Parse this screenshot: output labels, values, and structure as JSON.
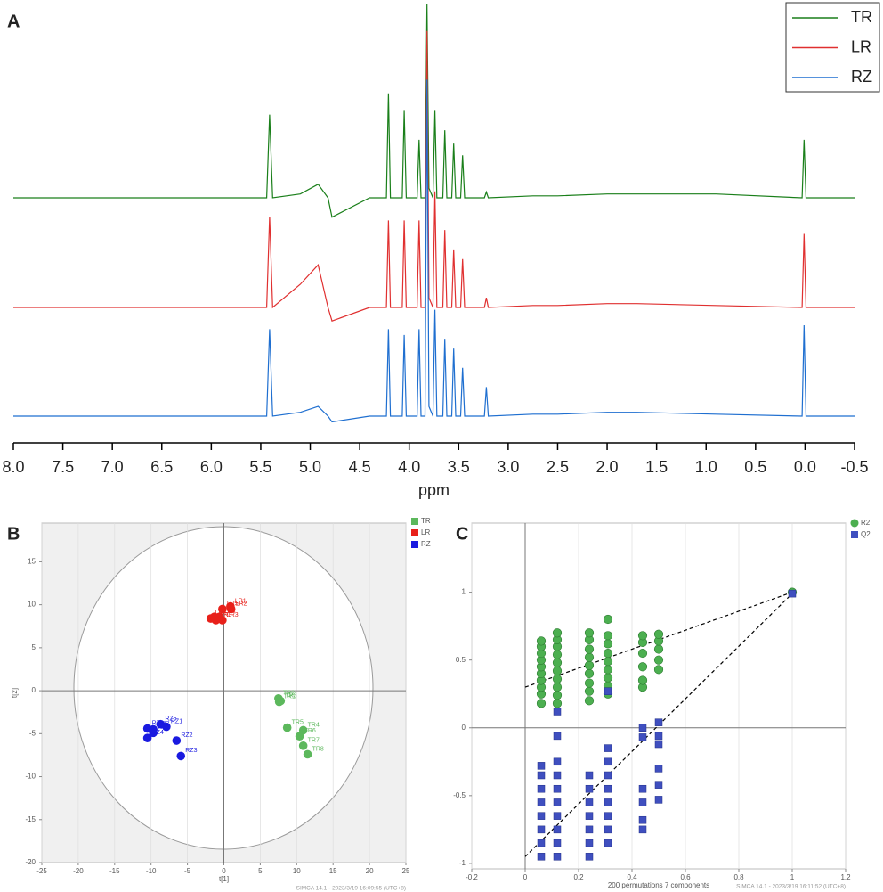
{
  "chart_data": [
    {
      "type": "line",
      "panel_label": "A",
      "xlabel": "ppm",
      "legend": "upper right",
      "xlim": [
        8.0,
        -0.5
      ],
      "xticks": [
        {
          "value": 8,
          "label": "8.0"
        },
        7.5,
        {
          "value": 7,
          "label": "7.0"
        },
        6.5,
        {
          "value": 6,
          "label": "6.0"
        },
        5.5,
        {
          "value": 5,
          "label": "5.0"
        },
        4.5,
        {
          "value": 4,
          "label": "4.0"
        },
        3.5,
        {
          "value": 3,
          "label": "3.0"
        },
        2.5,
        {
          "value": 2,
          "label": "2.0"
        },
        1.5,
        {
          "value": 1,
          "label": "1.0"
        },
        0.5,
        {
          "value": 0,
          "label": "0.0"
        },
        -0.5
      ],
      "x": [
        8.0,
        5.44,
        5.41,
        5.38,
        5.1,
        4.92,
        4.82,
        4.78,
        4.4,
        4.23,
        4.21,
        4.19,
        4.07,
        4.05,
        4.03,
        3.92,
        3.9,
        3.88,
        3.84,
        3.82,
        3.8,
        3.76,
        3.74,
        3.72,
        3.66,
        3.64,
        3.62,
        3.57,
        3.55,
        3.53,
        3.48,
        3.46,
        3.44,
        3.24,
        3.22,
        3.2,
        2.75,
        2.5,
        2.0,
        1.7,
        0.9,
        0.03,
        0.01,
        -0.01,
        -0.5
      ],
      "series": [
        {
          "name": "TR",
          "color": "#1a7f1a",
          "values": [
            0,
            0,
            43,
            0,
            2,
            7,
            0,
            -10,
            0,
            0,
            54,
            0,
            0,
            45,
            0,
            0,
            30,
            0,
            0,
            100,
            5,
            0,
            45,
            0,
            0,
            35,
            0,
            0,
            28,
            0,
            0,
            22,
            0,
            0,
            3,
            0,
            1,
            1,
            2,
            2,
            2,
            0,
            30,
            0,
            0
          ]
        },
        {
          "name": "LR",
          "color": "#e03030",
          "values": [
            0,
            0,
            47,
            0,
            12,
            22,
            0,
            -7,
            0,
            0,
            45,
            0,
            0,
            45,
            0,
            0,
            45,
            0,
            0,
            143,
            5,
            0,
            60,
            0,
            0,
            40,
            0,
            0,
            30,
            0,
            0,
            25,
            0,
            0,
            5,
            0,
            1,
            1,
            2,
            2,
            1,
            0,
            38,
            0,
            0
          ]
        },
        {
          "name": "RZ",
          "color": "#1f6fd0",
          "values": [
            0,
            0,
            45,
            0,
            2,
            5,
            0,
            -3,
            0,
            0,
            45,
            0,
            0,
            42,
            0,
            0,
            45,
            0,
            0,
            174,
            5,
            0,
            55,
            0,
            0,
            40,
            0,
            0,
            35,
            0,
            0,
            25,
            0,
            0,
            15,
            0,
            1,
            1,
            2,
            2,
            1,
            0,
            47,
            0,
            0
          ]
        }
      ]
    },
    {
      "type": "scatter",
      "panel_label": "B",
      "xlabel": "t[1]",
      "ylabel": "t[2]",
      "grid": true,
      "footnote": "SIMCA 14.1 - 2023/3/19 16:09:55 (UTC+8)",
      "xlim": [
        -25,
        25
      ],
      "xticks": [
        -25,
        -20,
        -15,
        -10,
        -5,
        0,
        5,
        10,
        15,
        20,
        25
      ],
      "ylim": [
        -20,
        19.5
      ],
      "yticks": [
        -20,
        -15,
        -10,
        -5,
        0,
        5,
        10,
        15
      ],
      "series": [
        {
          "name": "TR",
          "color": "#5cb85c",
          "marker": "circle",
          "x": [
            7.6,
            7.5,
            7.8,
            10.9,
            8.7,
            10.4,
            10.9,
            11.5
          ],
          "values": [
            -1.3,
            -0.9,
            -1.2,
            -4.6,
            -4.3,
            -5.3,
            -6.4,
            -7.4
          ],
          "point_labels": [
            "TR1",
            "TR2",
            "TR3",
            "TR4",
            "TR5",
            "TR6",
            "TR7",
            "TR8"
          ]
        },
        {
          "name": "LR",
          "color": "#e8201a",
          "marker": "circle",
          "x": [
            0.9,
            1.0,
            -0.2,
            -0.6,
            -0.2,
            -1.8,
            -1.3,
            -1.1
          ],
          "values": [
            9.8,
            9.5,
            8.2,
            8.6,
            9.5,
            8.4,
            8.6,
            8.2
          ],
          "point_labels": [
            "LR1",
            "LR2",
            "LR3",
            "LR4",
            "LR5",
            "LR6",
            "LR7",
            "LR8"
          ]
        },
        {
          "name": "RZ",
          "color": "#1a1ae0",
          "marker": "circle",
          "x": [
            -7.9,
            -6.5,
            -5.9,
            -10.5,
            -8.7,
            -9.7,
            -9.7,
            -10.5
          ],
          "values": [
            -4.2,
            -5.8,
            -7.6,
            -5.5,
            -3.9,
            -4.9,
            -4.5,
            -4.4
          ],
          "point_labels": [
            "RZ1",
            "RZ2",
            "RZ3",
            "RZ4",
            "RZ5",
            "RZ6",
            "RZ7",
            "RZ8"
          ]
        }
      ]
    },
    {
      "type": "scatter",
      "panel_label": "C",
      "xlabel": "200 permutations 7 components",
      "grid": true,
      "footnote": "SIMCA 14.1 - 2023/3/19 16:11:52 (UTC+8)",
      "xlim": [
        -0.2,
        1.2
      ],
      "xticks": [
        -0.2,
        0,
        0.2,
        0.4,
        0.6,
        0.8,
        1,
        1.2
      ],
      "ylim": [
        -1.04,
        1.51
      ],
      "yticks": [
        -1,
        -0.5,
        0,
        0.5,
        1
      ],
      "series": [
        {
          "name": "R2",
          "color": "#4caf50",
          "marker": "circle",
          "x": [
            0.06,
            0.06,
            0.06,
            0.06,
            0.06,
            0.06,
            0.06,
            0.06,
            0.06,
            0.06,
            0.12,
            0.12,
            0.12,
            0.12,
            0.12,
            0.12,
            0.12,
            0.12,
            0.12,
            0.12,
            0.24,
            0.24,
            0.24,
            0.24,
            0.24,
            0.24,
            0.24,
            0.24,
            0.24,
            0.31,
            0.31,
            0.31,
            0.31,
            0.31,
            0.31,
            0.31,
            0.31,
            0.31,
            0.44,
            0.44,
            0.44,
            0.44,
            0.44,
            0.44,
            0.5,
            0.5,
            0.5,
            0.5,
            0.5,
            1
          ],
          "values": [
            0.18,
            0.25,
            0.3,
            0.35,
            0.4,
            0.45,
            0.5,
            0.55,
            0.6,
            0.64,
            0.18,
            0.24,
            0.3,
            0.36,
            0.42,
            0.48,
            0.54,
            0.6,
            0.65,
            0.7,
            0.2,
            0.27,
            0.33,
            0.4,
            0.46,
            0.52,
            0.58,
            0.65,
            0.7,
            0.25,
            0.31,
            0.37,
            0.43,
            0.49,
            0.55,
            0.62,
            0.68,
            0.8,
            0.3,
            0.35,
            0.45,
            0.55,
            0.63,
            0.68,
            0.43,
            0.5,
            0.58,
            0.64,
            0.69,
            1
          ]
        },
        {
          "name": "Q2",
          "color": "#3f4fbf",
          "marker": "square",
          "x": [
            0.06,
            0.06,
            0.06,
            0.06,
            0.06,
            0.06,
            0.06,
            0.06,
            0.12,
            0.12,
            0.12,
            0.12,
            0.12,
            0.12,
            0.12,
            0.12,
            0.12,
            0.12,
            0.24,
            0.24,
            0.24,
            0.24,
            0.24,
            0.24,
            0.24,
            0.31,
            0.31,
            0.31,
            0.31,
            0.31,
            0.31,
            0.31,
            0.31,
            0.31,
            0.44,
            0.44,
            0.44,
            0.44,
            0.44,
            0.44,
            0.5,
            0.5,
            0.5,
            0.5,
            0.5,
            0.5,
            1
          ],
          "values": [
            -0.95,
            -0.85,
            -0.75,
            -0.65,
            -0.55,
            -0.45,
            -0.35,
            -0.28,
            -0.95,
            -0.85,
            -0.75,
            -0.65,
            -0.55,
            -0.45,
            -0.35,
            -0.25,
            -0.06,
            0.12,
            -0.95,
            -0.85,
            -0.75,
            -0.65,
            -0.55,
            -0.45,
            -0.35,
            -0.85,
            -0.75,
            -0.65,
            -0.55,
            -0.45,
            -0.35,
            -0.25,
            -0.15,
            0.27,
            -0.75,
            -0.68,
            -0.55,
            -0.45,
            0,
            -0.07,
            -0.53,
            -0.42,
            -0.3,
            -0.12,
            -0.06,
            0.04,
            0.99
          ]
        }
      ],
      "fit_lines": [
        {
          "x": [
            0,
            1
          ],
          "values": [
            0.3,
            1
          ]
        },
        {
          "x": [
            0,
            1
          ],
          "values": [
            -0.95,
            0.99
          ]
        }
      ]
    }
  ]
}
